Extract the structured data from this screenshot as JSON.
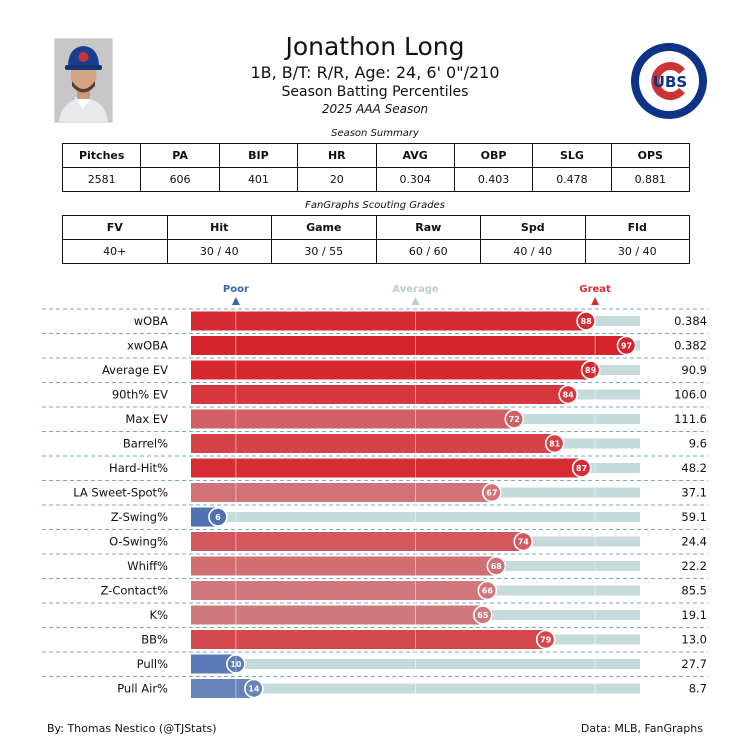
{
  "header": {
    "name": "Jonathon Long",
    "bio": "1B, B/T: R/R, Age: 24, 6' 0\"/210",
    "subtitle": "Season Batting Percentiles",
    "season": "2025 AAA Season",
    "logo_text": "CUBS",
    "colors": {
      "cubs_blue": "#0E3386",
      "cubs_red": "#CC3433"
    }
  },
  "summary": {
    "caption": "Season Summary",
    "headers": [
      "Pitches",
      "PA",
      "BIP",
      "HR",
      "AVG",
      "OBP",
      "SLG",
      "OPS"
    ],
    "values": [
      "2581",
      "606",
      "401",
      "20",
      "0.304",
      "0.403",
      "0.478",
      "0.881"
    ]
  },
  "scouting": {
    "caption": "FanGraphs Scouting Grades",
    "headers": [
      "FV",
      "Hit",
      "Game",
      "Raw",
      "Spd",
      "Fld"
    ],
    "values": [
      "40+",
      "30 / 40",
      "30 / 55",
      "60 / 60",
      "40 / 40",
      "30 / 40"
    ]
  },
  "chart_data": {
    "type": "bar",
    "markers": [
      {
        "label": "Poor",
        "value": 10,
        "color": "#3b64b0"
      },
      {
        "label": "Average",
        "value": 50,
        "color": "#b9cfcf"
      },
      {
        "label": "Great",
        "value": 90,
        "color": "#d62f2f"
      }
    ],
    "xlim": [
      0,
      100
    ],
    "categories": [
      "wOBA",
      "xwOBA",
      "Average EV",
      "90th% EV",
      "Max EV",
      "Barrel%",
      "Hard-Hit%",
      "LA Sweet-Spot%",
      "Z-Swing%",
      "O-Swing%",
      "Whiff%",
      "Z-Contact%",
      "K%",
      "BB%",
      "Pull%",
      "Pull Air%"
    ],
    "percentiles": [
      88,
      97,
      89,
      84,
      72,
      81,
      87,
      67,
      6,
      74,
      68,
      66,
      65,
      79,
      10,
      14
    ],
    "stat_values": [
      "0.384",
      "0.382",
      "90.9",
      "106.0",
      "111.6",
      "9.6",
      "48.2",
      "37.1",
      "59.1",
      "24.4",
      "22.2",
      "85.5",
      "19.1",
      "13.0",
      "27.7",
      "8.7"
    ],
    "colors": {
      "track": "#c5dadb",
      "scale_low": "#3760ae",
      "scale_mid": "#c8c8c8",
      "scale_high": "#d7242c"
    }
  },
  "footer": {
    "credit": "By: Thomas Nestico (@TJStats)",
    "source": "Data: MLB, FanGraphs"
  }
}
